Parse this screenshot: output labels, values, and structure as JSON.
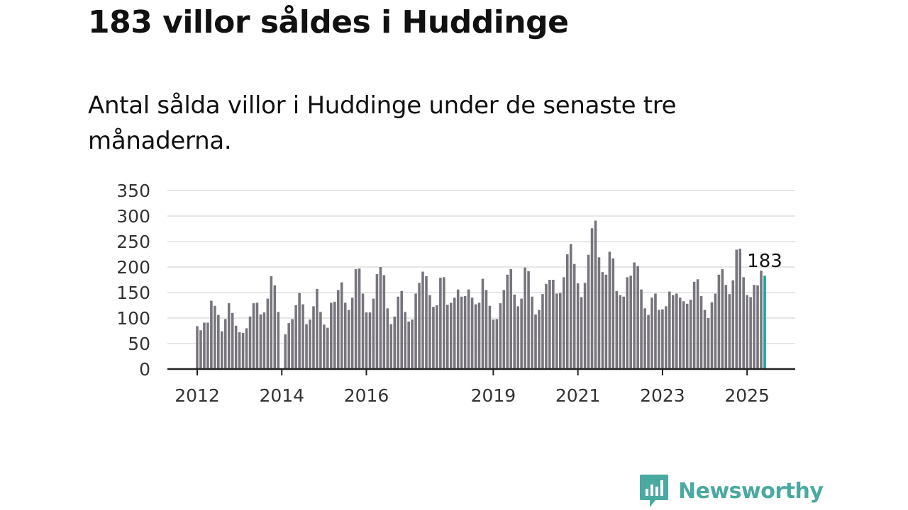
{
  "header": {
    "title": "183 villor såldes i Huddinge",
    "subtitle": "Antal sålda villor i Huddinge under de senaste tre månaderna."
  },
  "brand": {
    "name": "Newsworthy",
    "color": "#4aa9a1",
    "icon": "chart-speech-bubble-icon"
  },
  "chart_data": {
    "type": "bar",
    "title": "",
    "xlabel": "",
    "ylabel": "",
    "ylim": [
      0,
      350
    ],
    "yticks": [
      0,
      50,
      100,
      150,
      200,
      250,
      300,
      350
    ],
    "grid": true,
    "legend": "none",
    "x_start": "2012-01",
    "x_end": "2025-06",
    "xtick_labels": [
      {
        "label": "2012",
        "date": "2012-01"
      },
      {
        "label": "2014",
        "date": "2014-01"
      },
      {
        "label": "2016",
        "date": "2016-01"
      },
      {
        "label": "2019",
        "date": "2019-01"
      },
      {
        "label": "2021",
        "date": "2021-01"
      },
      {
        "label": "2023",
        "date": "2023-01"
      },
      {
        "label": "2025",
        "date": "2025-01"
      }
    ],
    "colors": {
      "bars": "#77747c",
      "highlight": "#1aa39a",
      "grid": "#dddddd",
      "axis": "#222222"
    },
    "highlight_label": "183",
    "series": [
      {
        "values": [
          84,
          76,
          91,
          91,
          134,
          124,
          106,
          74,
          98,
          129,
          110,
          85,
          72,
          71,
          80,
          103,
          129,
          130,
          107,
          111,
          138,
          182,
          164,
          112,
          0,
          68,
          90,
          98,
          125,
          149,
          127,
          88,
          97,
          123,
          157,
          112,
          87,
          81,
          130,
          132,
          155,
          170,
          130,
          116,
          140,
          196,
          197,
          148,
          111,
          111,
          138,
          186,
          200,
          184,
          119,
          88,
          103,
          142,
          153,
          112,
          93,
          97,
          148,
          169,
          191,
          182,
          145,
          122,
          125,
          179,
          180,
          126,
          130,
          140,
          156,
          142,
          143,
          156,
          140,
          127,
          130,
          177,
          155,
          124,
          97,
          98,
          129,
          155,
          185,
          196,
          146,
          123,
          138,
          199,
          192,
          142,
          107,
          116,
          147,
          167,
          175,
          175,
          148,
          149,
          180,
          225,
          245,
          206,
          168,
          141,
          169,
          224,
          276,
          291,
          219,
          190,
          185,
          230,
          217,
          153,
          145,
          142,
          180,
          183,
          209,
          202,
          156,
          119,
          106,
          140,
          148,
          116,
          117,
          123,
          152,
          145,
          148,
          140,
          133,
          128,
          136,
          171,
          176,
          143,
          116,
          100,
          131,
          148,
          185,
          196,
          165,
          147,
          174,
          234,
          236,
          180,
          145,
          141,
          165,
          164,
          193,
          183
        ]
      }
    ]
  }
}
